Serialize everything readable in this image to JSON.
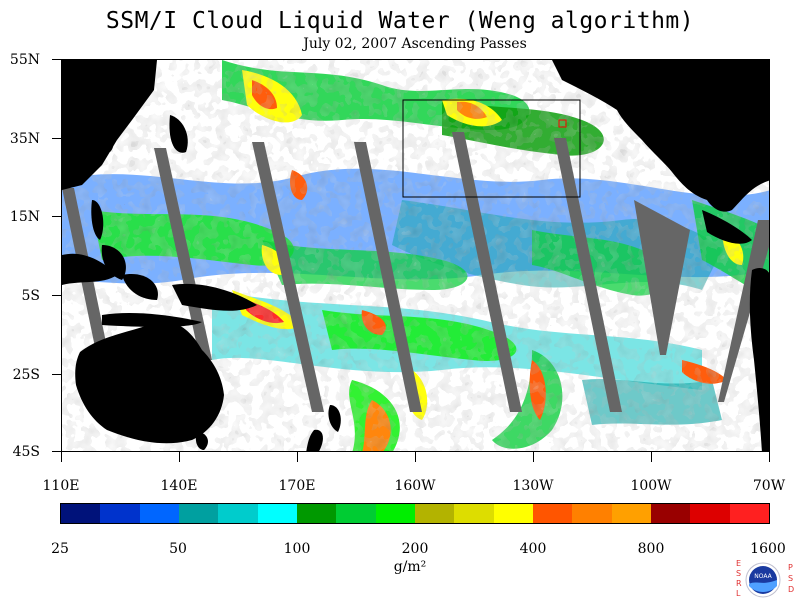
{
  "title": "SSM/I Cloud Liquid Water (Weng algorithm)",
  "subtitle": "July 02, 2007  Ascending Passes",
  "lat_labels": [
    "55N",
    "35N",
    "15N",
    "5S",
    "25S",
    "45S"
  ],
  "lon_labels": [
    "110E",
    "140E",
    "170E",
    "160W",
    "130W",
    "100W",
    "70W"
  ],
  "colorbar": {
    "labels": [
      "25",
      "50",
      "100",
      "200",
      "400",
      "800",
      "1600"
    ],
    "colors": [
      "#00127a",
      "#0033cc",
      "#0066ff",
      "#00a0a0",
      "#00cccc",
      "#00ffff",
      "#009900",
      "#00cc33",
      "#00ee00",
      "#b3b300",
      "#dddd00",
      "#ffff00",
      "#ff5500",
      "#ff8000",
      "#ffa000",
      "#990000",
      "#dd0000",
      "#ff2020"
    ],
    "unit": "g/m²"
  },
  "logo": {
    "left_letters": "ESRL",
    "right_letters": "PSD",
    "badge": "NOAA"
  }
}
